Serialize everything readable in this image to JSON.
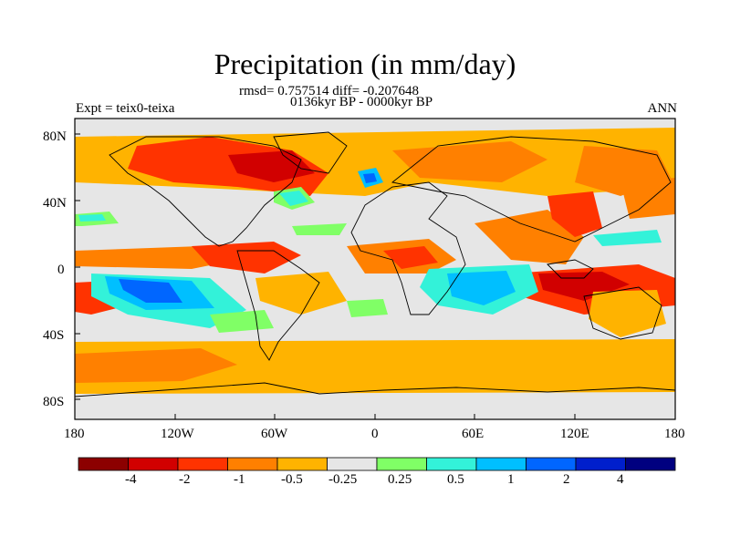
{
  "header": {
    "title": "Precipitation (in mm/day)",
    "stats": "rmsd= 0.757514 diff= -0.207648",
    "period": "0136kyr BP - 0000kyr BP",
    "experiment": "Expt = teix0-teixa",
    "season": "ANN"
  },
  "axes": {
    "lat_ticks": [
      "80N",
      "40N",
      "0",
      "40S",
      "80S"
    ],
    "lon_ticks": [
      "180",
      "120W",
      "60W",
      "0",
      "60E",
      "120E",
      "180"
    ]
  },
  "colorbar": {
    "colors": [
      "#8c0000",
      "#d10000",
      "#ff3300",
      "#ff8000",
      "#ffb300",
      "#e6e6e6",
      "#80ff66",
      "#33f2d9",
      "#00bfff",
      "#0066ff",
      "#001fcc",
      "#000080"
    ],
    "labels": [
      "-4",
      "-2",
      "-1",
      "-0.5",
      "-0.25",
      "0.25",
      "0.5",
      "1",
      "2",
      "4"
    ]
  },
  "map": {
    "colors": {
      "land": "#e6e6e6",
      "dry_strong": "#d10000",
      "dry": "#ff3300",
      "dry_mod": "#ff8000",
      "dry_light": "#ffb300",
      "wet_light": "#80ff66",
      "wet": "#33f2d9",
      "wet_mod": "#00bfff",
      "wet_strong": "#0066ff",
      "wet_max": "#001fcc",
      "coast": "#000000"
    }
  }
}
